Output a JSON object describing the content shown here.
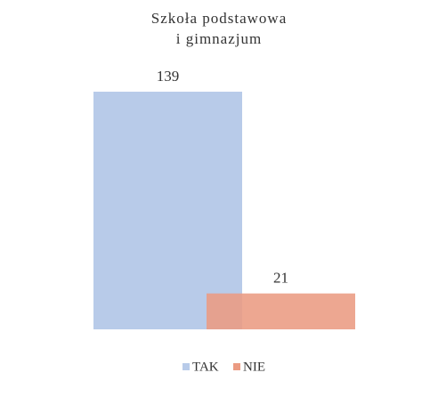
{
  "chart_data": {
    "type": "bar",
    "title": [
      "Szkoła podstawowa",
      "i gimnazjum"
    ],
    "categories": [
      null
    ],
    "series": [
      {
        "name": "TAK",
        "color": "#b8cbe9",
        "values": [
          139
        ]
      },
      {
        "name": "NIE",
        "color": "#eb9b82",
        "values": [
          21
        ]
      }
    ],
    "legend": "bottom"
  }
}
